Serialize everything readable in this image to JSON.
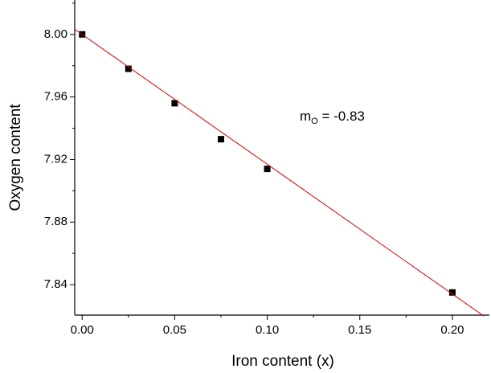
{
  "chart_data": {
    "type": "scatter",
    "x_label": "Iron content (x)",
    "y_label": "Oxygen content",
    "annotation": {
      "main": "m",
      "sub": "O",
      "rest": " = -0.83"
    },
    "xlim": [
      -0.004,
      0.22
    ],
    "ylim": [
      7.8205,
      8.022
    ],
    "xticks": [
      {
        "value": 0,
        "label": "0.00"
      },
      0.05,
      {
        "value": 0.1,
        "label": "0.10"
      },
      0.15,
      {
        "value": 0.2,
        "label": "0.20"
      }
    ],
    "yticks": [
      {
        "value": 7.84,
        "label": "7.84"
      },
      {
        "value": 7.88,
        "label": "7.88"
      },
      {
        "value": 7.92,
        "label": "7.92"
      },
      {
        "value": 7.96,
        "label": "7.96"
      },
      {
        "value": 8.0,
        "label": "8.00"
      }
    ],
    "xminorticks": [
      0.025,
      0.075,
      0.125,
      0.175
    ],
    "yminorticks": [
      7.86,
      7.9,
      7.94,
      7.98,
      8.02
    ],
    "series": [
      {
        "kind": "points",
        "color": "#000000",
        "x": [
          0,
          0.025,
          0.05,
          0.075,
          0.1,
          0.2
        ],
        "values": [
          8.0,
          7.978,
          7.956,
          7.933,
          7.914,
          7.835
        ]
      },
      {
        "kind": "line",
        "color": "#e00000",
        "x": [
          -0.004,
          0.217
        ],
        "values": [
          8.0033,
          7.8199
        ]
      }
    ]
  }
}
